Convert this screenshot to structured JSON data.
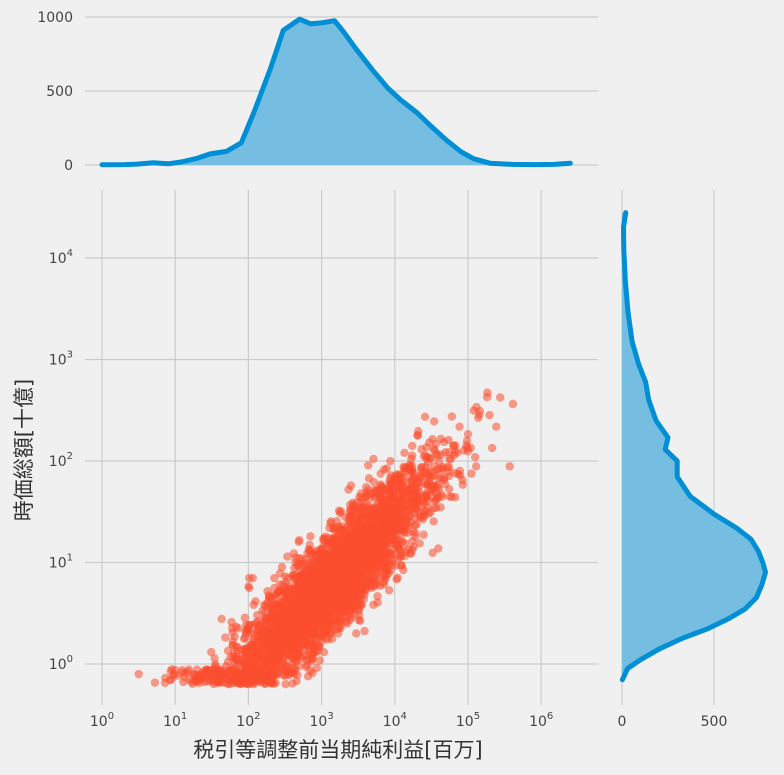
{
  "chart_data": {
    "type": "scatter",
    "subtype": "joint-plot (log-log scatter with marginal KDE densities)",
    "xlabel": "税引等調整前当期純利益[百万]",
    "ylabel": "時価総額[十億]",
    "x_scale": "log",
    "y_scale": "log",
    "x_ticks": [
      "10^0",
      "10^1",
      "10^2",
      "10^3",
      "10^4",
      "10^5",
      "10^6"
    ],
    "y_ticks": [
      "10^0",
      "10^1",
      "10^2",
      "10^3",
      "10^4"
    ],
    "xlim": [
      0.5,
      3000000
    ],
    "ylim": [
      0.4,
      40000
    ],
    "grid": true,
    "colors": {
      "scatter": "#fc4f30",
      "density_line": "#008fd5",
      "density_fill": "#76bde2",
      "grid": "#cbcbcb",
      "background": "#f0f0f0"
    },
    "trend": {
      "description": "dense positively-correlated cloud",
      "log_slope": 0.72,
      "log_intercept": -1.45,
      "center_x": 1000,
      "center_y": 10,
      "approx_points": 3700
    },
    "marginal_x": {
      "axis": "count",
      "ticks": [
        0,
        500,
        1000
      ],
      "range": [
        0,
        1000
      ],
      "x": [
        1,
        2,
        3,
        5,
        8,
        12,
        20,
        30,
        50,
        80,
        120,
        200,
        300,
        500,
        700,
        1000,
        1500,
        2000,
        3000,
        5000,
        8000,
        12000,
        20000,
        30000,
        50000,
        80000,
        120000,
        200000,
        400000,
        800000,
        1500000,
        2500000
      ],
      "density": [
        2,
        3,
        6,
        15,
        8,
        20,
        45,
        75,
        92,
        150,
        360,
        650,
        910,
        985,
        955,
        960,
        975,
        900,
        780,
        640,
        520,
        440,
        355,
        270,
        170,
        90,
        42,
        12,
        4,
        3,
        4,
        12
      ]
    },
    "marginal_y": {
      "axis": "count",
      "ticks": [
        0,
        500
      ],
      "range": [
        0,
        800
      ],
      "y": [
        0.7,
        0.9,
        1.1,
        1.4,
        1.8,
        2.2,
        2.8,
        3.5,
        4.5,
        6,
        8,
        10,
        13,
        17,
        22,
        30,
        45,
        70,
        100,
        130,
        170,
        250,
        400,
        600,
        900,
        1500,
        3000,
        6000,
        12000,
        20000,
        28000
      ],
      "density": [
        2,
        30,
        100,
        200,
        330,
        460,
        580,
        670,
        730,
        760,
        780,
        765,
        740,
        700,
        620,
        500,
        370,
        300,
        300,
        235,
        250,
        185,
        145,
        128,
        90,
        55,
        32,
        18,
        10,
        8,
        20
      ]
    }
  }
}
